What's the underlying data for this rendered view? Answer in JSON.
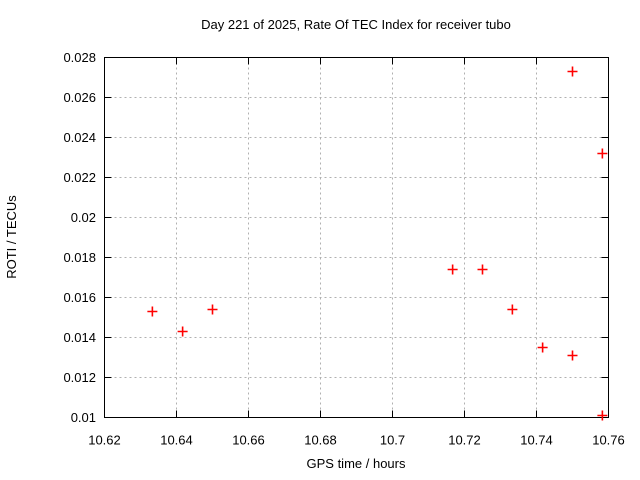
{
  "chart_data": {
    "type": "scatter",
    "title": "Day 221 of 2025, Rate Of TEC Index for receiver tubo",
    "xlabel": "GPS time / hours",
    "ylabel": "ROTI / TECUs",
    "xlim": [
      10.62,
      10.76
    ],
    "ylim": [
      0.01,
      0.028
    ],
    "x_ticks": [
      10.62,
      10.64,
      10.66,
      10.68,
      10.7,
      10.72,
      10.74,
      10.76
    ],
    "x_tick_labels": [
      "10.62",
      "10.64",
      "10.66",
      "10.68",
      "10.7",
      "10.72",
      "10.74",
      "10.76"
    ],
    "y_ticks": [
      0.01,
      0.012,
      0.014,
      0.016,
      0.018,
      0.02,
      0.022,
      0.024,
      0.026,
      0.028
    ],
    "y_tick_labels": [
      "0.01",
      "0.012",
      "0.014",
      "0.016",
      "0.018",
      "0.02",
      "0.022",
      "0.024",
      "0.026",
      "0.028"
    ],
    "grid": true,
    "legend": "none",
    "marker": "plus",
    "series": [
      {
        "name": "ROTI",
        "points": [
          [
            10.6333,
            0.0153
          ],
          [
            10.6417,
            0.0143
          ],
          [
            10.65,
            0.0154
          ],
          [
            10.7167,
            0.0174
          ],
          [
            10.725,
            0.0174
          ],
          [
            10.7333,
            0.0154
          ],
          [
            10.7417,
            0.0135
          ],
          [
            10.75,
            0.0131
          ],
          [
            10.75,
            0.0273
          ],
          [
            10.7583,
            0.0232
          ],
          [
            10.7583,
            0.0101
          ]
        ]
      }
    ],
    "colors": {
      "marker": "#ff0000",
      "grid": "#b0b0b0",
      "border": "#000000",
      "background": "#ffffff",
      "text": "#000000"
    }
  }
}
